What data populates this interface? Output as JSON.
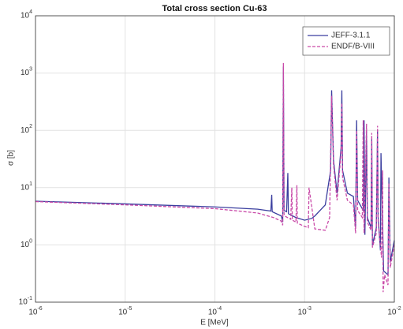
{
  "chart_data": {
    "type": "line",
    "title": "Total cross section Cu-63",
    "x_label": "E [MeV]",
    "y_label": "σ [b]",
    "log_x": true,
    "log_y": true,
    "grid": true,
    "legend": "upper right",
    "xlim": [
      1e-06,
      0.01
    ],
    "xticks": [
      {
        "value": 1e-06,
        "label": "10^-6"
      },
      {
        "value": 1e-05,
        "label": "10^-5"
      },
      {
        "value": 0.0001,
        "label": "10^-4"
      },
      {
        "value": 0.001,
        "label": "10^-3"
      },
      {
        "value": 0.01,
        "label": "10^-2"
      }
    ],
    "ylim": [
      0.1,
      10000
    ],
    "yticks": [
      {
        "value": 0.1,
        "label": "10^-1"
      },
      {
        "value": 1,
        "label": "10^0"
      },
      {
        "value": 10,
        "label": "10^1"
      },
      {
        "value": 100,
        "label": "10^2"
      },
      {
        "value": 1000,
        "label": "10^3"
      },
      {
        "value": 10000,
        "label": "10^4"
      }
    ],
    "series": [
      {
        "name": "JEFF-3.1.1",
        "color": "#3b3f9f",
        "dash": false,
        "x": [
          1e-06,
          1e-05,
          0.0001,
          0.0003,
          0.00042,
          0.00043,
          0.000435,
          0.00055,
          0.00057,
          0.00058,
          0.00059,
          0.00063,
          0.00065,
          0.00066,
          0.0008,
          0.001,
          0.0012,
          0.0013,
          0.0017,
          0.00195,
          0.002,
          0.0021,
          0.0023,
          0.00255,
          0.0026,
          0.00265,
          0.003,
          0.0035,
          0.0037,
          0.0038,
          0.0039,
          0.0045,
          0.0046,
          0.0047,
          0.0049,
          0.005,
          0.0055,
          0.0056,
          0.0057,
          0.0063,
          0.0065,
          0.0066,
          0.007,
          0.0071,
          0.0076,
          0.0085,
          0.0087,
          0.009,
          0.01
        ],
        "y": [
          5.8,
          5.2,
          4.6,
          4.2,
          3.9,
          7.5,
          3.8,
          3.2,
          2.5,
          1300,
          4,
          3.8,
          18,
          3.5,
          3,
          2.7,
          2.9,
          3.2,
          5,
          20,
          500,
          30,
          8,
          50,
          500,
          20,
          8,
          7,
          2,
          150,
          6,
          4,
          150,
          1.5,
          100,
          3,
          2,
          70,
          1,
          2,
          100,
          3,
          0.8,
          40,
          0.35,
          0.3,
          15,
          0.5,
          1.2
        ]
      },
      {
        "name": "ENDF/B-VIII",
        "color": "#c94aa8",
        "dash": true,
        "x": [
          1e-06,
          1e-05,
          0.0001,
          0.0003,
          0.00045,
          0.00055,
          0.00057,
          0.00058,
          0.00059,
          0.0006,
          0.0007,
          0.00072,
          0.00073,
          0.0008,
          0.00082,
          0.00083,
          0.001,
          0.0011,
          0.00112,
          0.0013,
          0.0017,
          0.0019,
          0.002,
          0.0021,
          0.0023,
          0.00255,
          0.0026,
          0.00265,
          0.003,
          0.0035,
          0.0037,
          0.0038,
          0.0039,
          0.0044,
          0.0045,
          0.0046,
          0.0049,
          0.005,
          0.0055,
          0.0056,
          0.0057,
          0.0063,
          0.0065,
          0.0066,
          0.0072,
          0.0074,
          0.0075,
          0.0078,
          0.0085,
          0.0087,
          0.009,
          0.01
        ],
        "y": [
          5.7,
          5.0,
          4.3,
          3.6,
          3.0,
          2.6,
          2.2,
          1500,
          3.5,
          3.2,
          2.8,
          10,
          2.7,
          2.5,
          11,
          2.4,
          2.1,
          2.0,
          10,
          1.9,
          1.8,
          3,
          400,
          25,
          6,
          40,
          300,
          15,
          6,
          5,
          1.6,
          100,
          4,
          3,
          150,
          1.6,
          130,
          2.5,
          1.8,
          90,
          0.9,
          1.6,
          120,
          2.5,
          0.6,
          20,
          0.15,
          0.3,
          0.2,
          12,
          0.4,
          1
        ]
      }
    ]
  }
}
